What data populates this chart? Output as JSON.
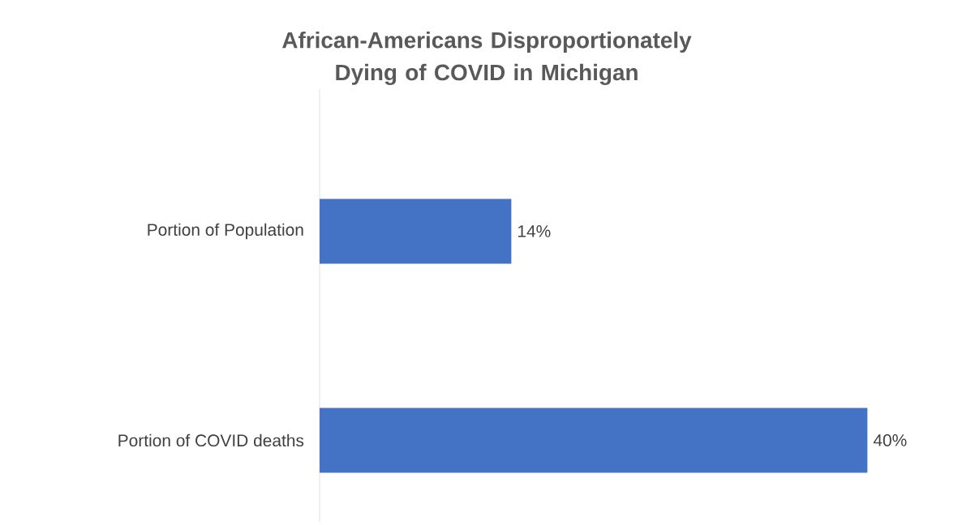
{
  "chart_data": {
    "type": "bar",
    "orientation": "horizontal",
    "title": "African-Americans Disproportionately Dying of COVID in Michigan",
    "categories": [
      "Portion of Population",
      "Portion of COVID deaths"
    ],
    "values": [
      14,
      40
    ],
    "value_labels": [
      "14%",
      "40%"
    ],
    "color": "#4472c4"
  }
}
